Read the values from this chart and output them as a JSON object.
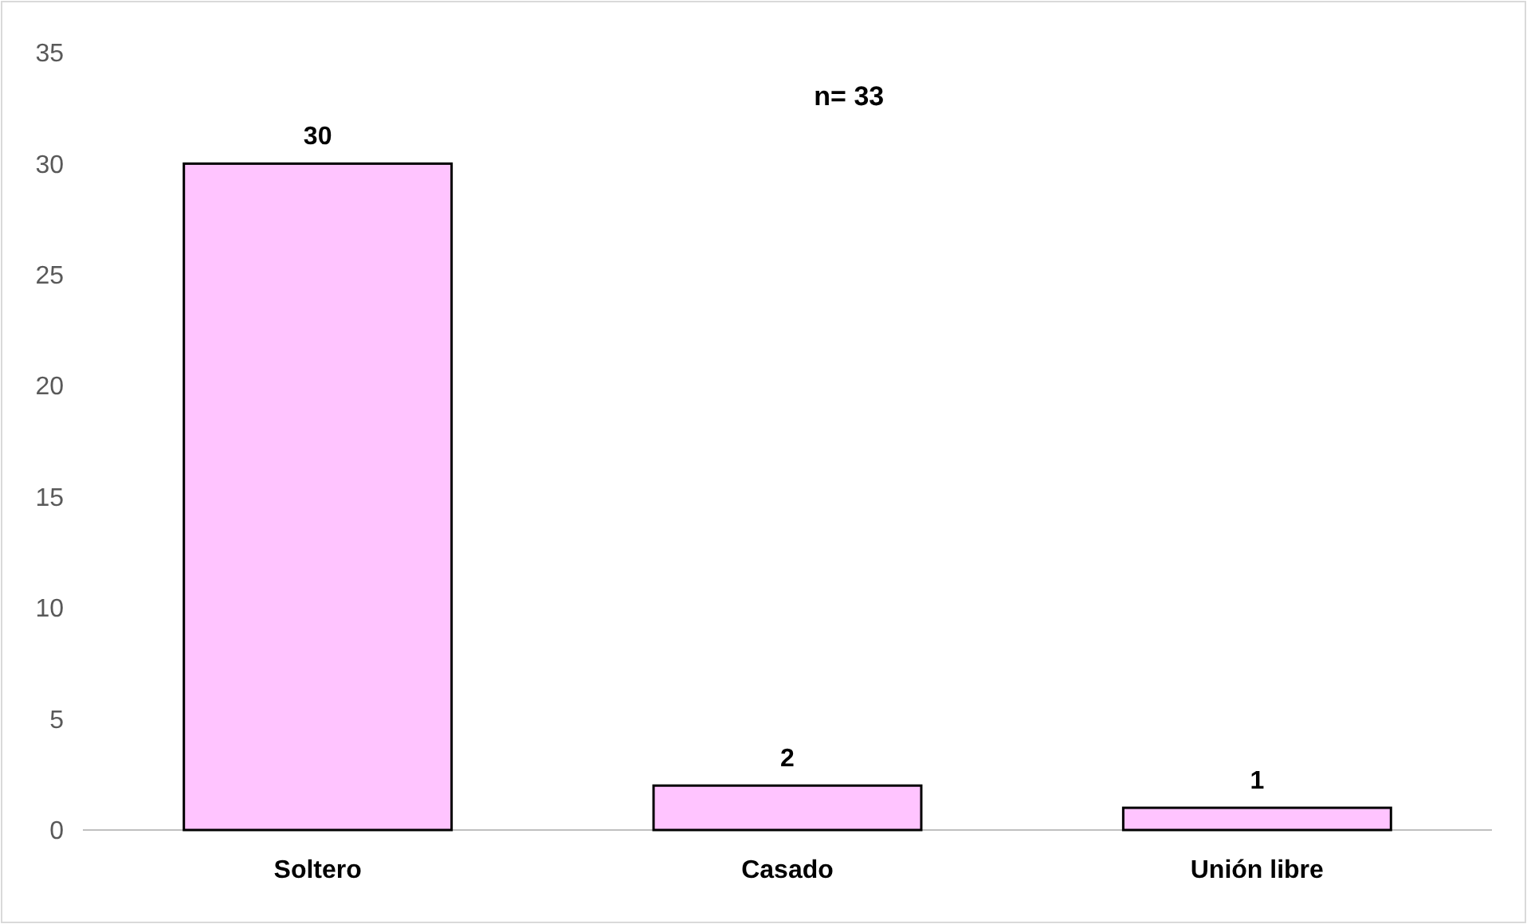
{
  "chart_data": {
    "type": "bar",
    "categories": [
      "Soltero",
      "Casado",
      "Unión libre"
    ],
    "values": [
      30,
      2,
      1
    ],
    "color": "#ffc4ff",
    "ylim": [
      0,
      35
    ],
    "yticks": [
      0,
      5,
      10,
      15,
      20,
      25,
      30,
      35
    ],
    "grid": false,
    "data_labels": true,
    "annotations": [
      "n= 33"
    ]
  }
}
